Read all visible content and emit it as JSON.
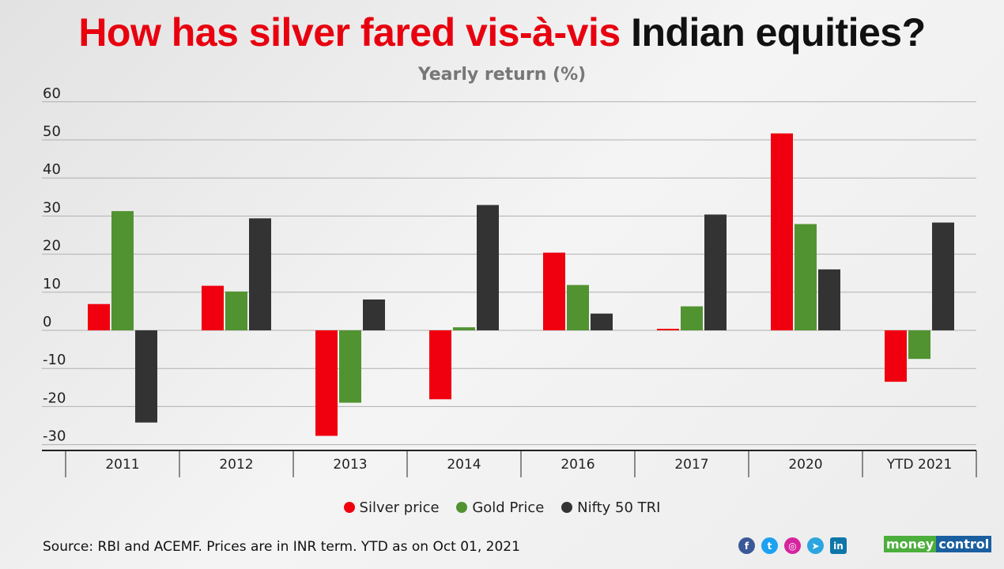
{
  "title": {
    "part1": "How has silver fared vis-à-vis",
    "part2": "Indian equities?"
  },
  "chart_data": {
    "type": "bar",
    "title": "How has silver fared vis-à-vis Indian equities?",
    "subtitle": "Yearly return (%)",
    "categories": [
      "2011",
      "2012",
      "2013",
      "2014",
      "2016",
      "2017",
      "2020",
      "YTD 2021"
    ],
    "series": [
      {
        "name": "Silver price",
        "color": "#f0000f",
        "values": [
          6.9,
          11.7,
          -27.7,
          -18.1,
          20.4,
          0.4,
          51.7,
          -13.5
        ]
      },
      {
        "name": "Gold Price",
        "color": "#519331",
        "values": [
          31.3,
          10.2,
          -19.0,
          0.8,
          11.9,
          6.3,
          27.9,
          -7.5
        ]
      },
      {
        "name": "Nifty 50 TRI",
        "color": "#333333",
        "values": [
          -24.2,
          29.4,
          8.1,
          32.9,
          4.4,
          30.4,
          16.0,
          28.3
        ]
      }
    ],
    "ylim": [
      -30,
      60
    ],
    "yticks": [
      60,
      50,
      40,
      30,
      20,
      10,
      0,
      -10,
      -20,
      -30
    ],
    "grid": true,
    "legend": "bottom"
  },
  "footer": {
    "source": "Source: RBI and ACEMF. Prices are in INR term. YTD as on Oct 01, 2021",
    "logo": "moneycontrol",
    "social": [
      "facebook-icon",
      "twitter-icon",
      "instagram-icon",
      "telegram-icon",
      "linkedin-icon"
    ]
  }
}
